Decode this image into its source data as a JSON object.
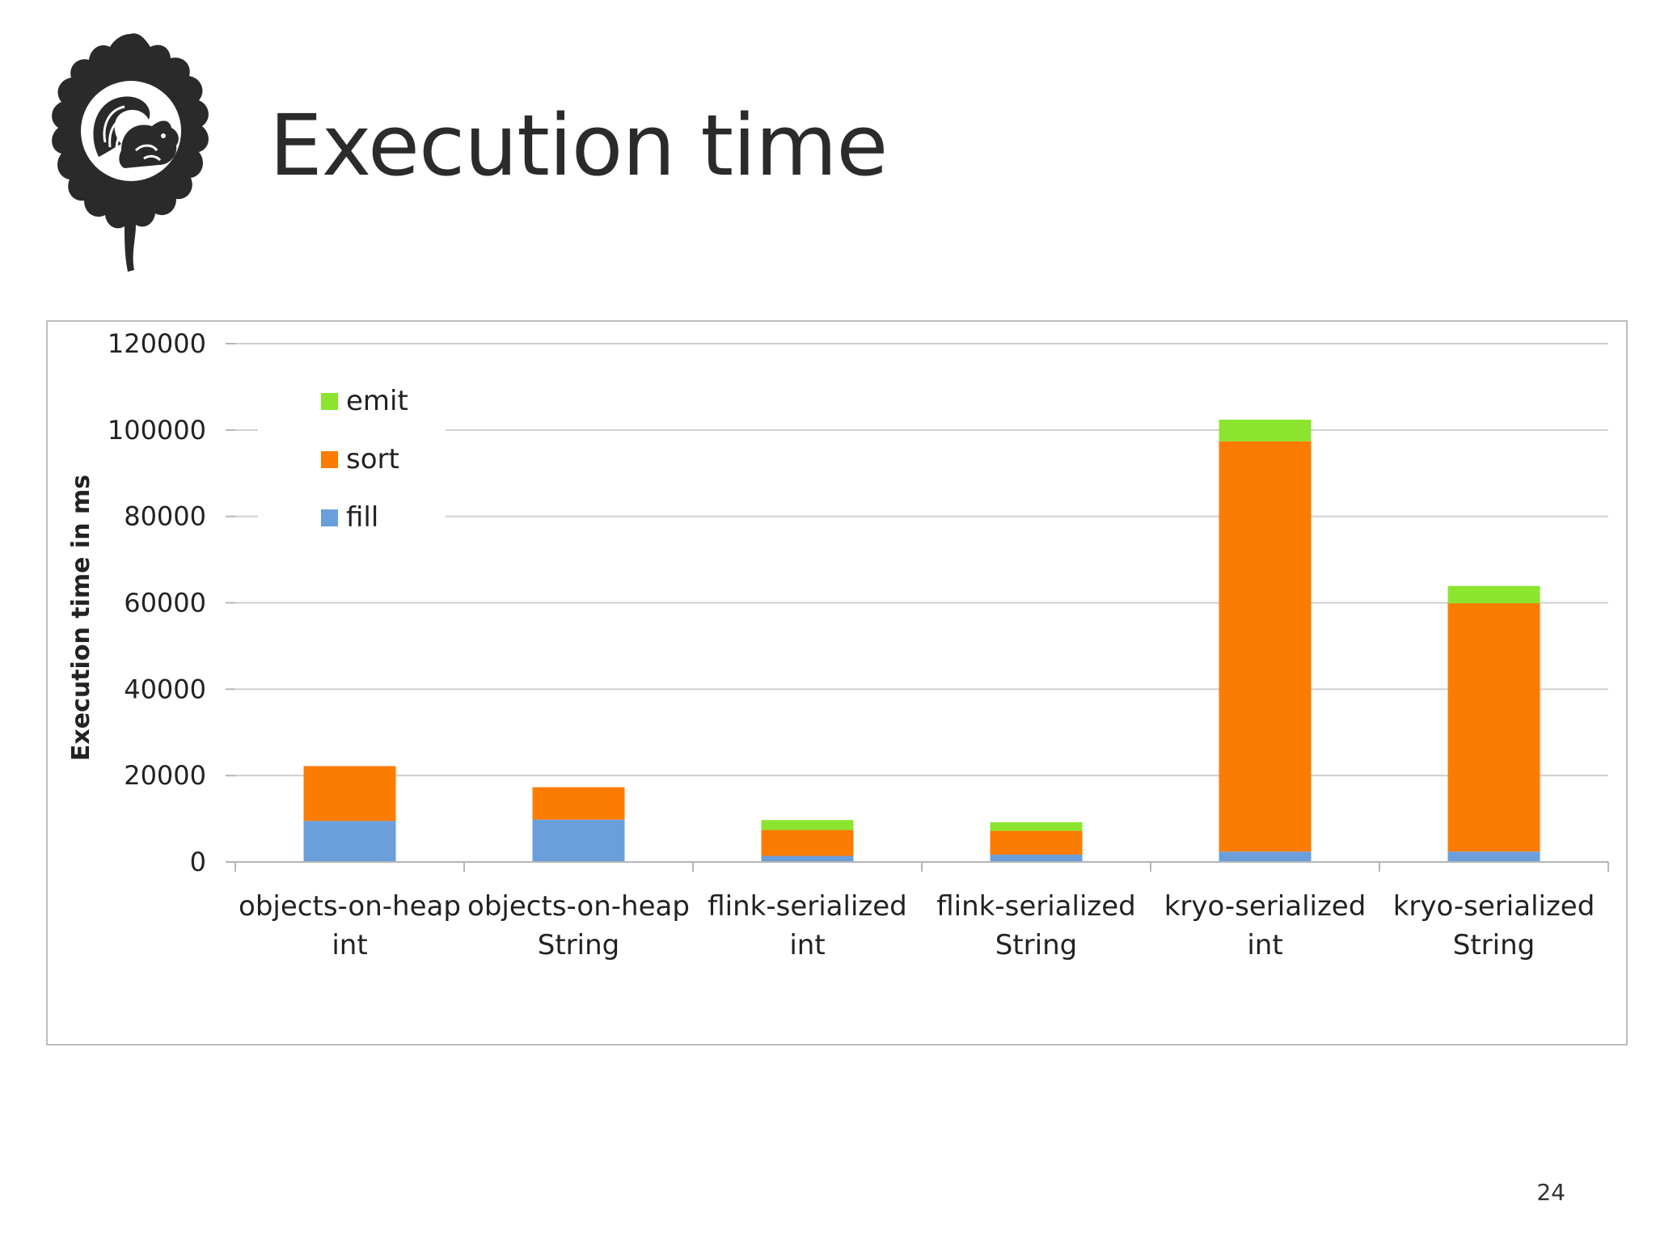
{
  "slide": {
    "title": "Execution time",
    "page_number": "24"
  },
  "colors": {
    "fill": "#6a9fdc",
    "sort": "#fb7c00",
    "emit": "#8be52f",
    "grid": "#cfcfcf",
    "axis": "#b5b5b5",
    "text": "#222222"
  },
  "chart_data": {
    "type": "bar",
    "stacked": true,
    "title": "",
    "xlabel": "",
    "ylabel": "Execution time in ms",
    "ylim": [
      0,
      120000
    ],
    "yticks": [
      "0",
      "20000",
      "40000",
      "60000",
      "80000",
      "100000",
      "120000"
    ],
    "grid": true,
    "legend_position": "top-left",
    "categories": [
      [
        "objects-on-heap",
        "int"
      ],
      [
        "objects-on-heap",
        "String"
      ],
      [
        "flink-serialized",
        "int"
      ],
      [
        "flink-serialized",
        "String"
      ],
      [
        "kryo-serialized",
        "int"
      ],
      [
        "kryo-serialized",
        "String"
      ]
    ],
    "series": [
      {
        "name": "fill",
        "color": "#6a9fdc",
        "values": [
          9500,
          9800,
          1400,
          1700,
          2400,
          2400
        ]
      },
      {
        "name": "sort",
        "color": "#fb7c00",
        "values": [
          12700,
          7500,
          6000,
          5500,
          95000,
          57500
        ]
      },
      {
        "name": "emit",
        "color": "#8be52f",
        "values": [
          0,
          0,
          2300,
          2000,
          5000,
          4000
        ]
      }
    ],
    "legend_order": [
      "emit",
      "sort",
      "fill"
    ]
  }
}
